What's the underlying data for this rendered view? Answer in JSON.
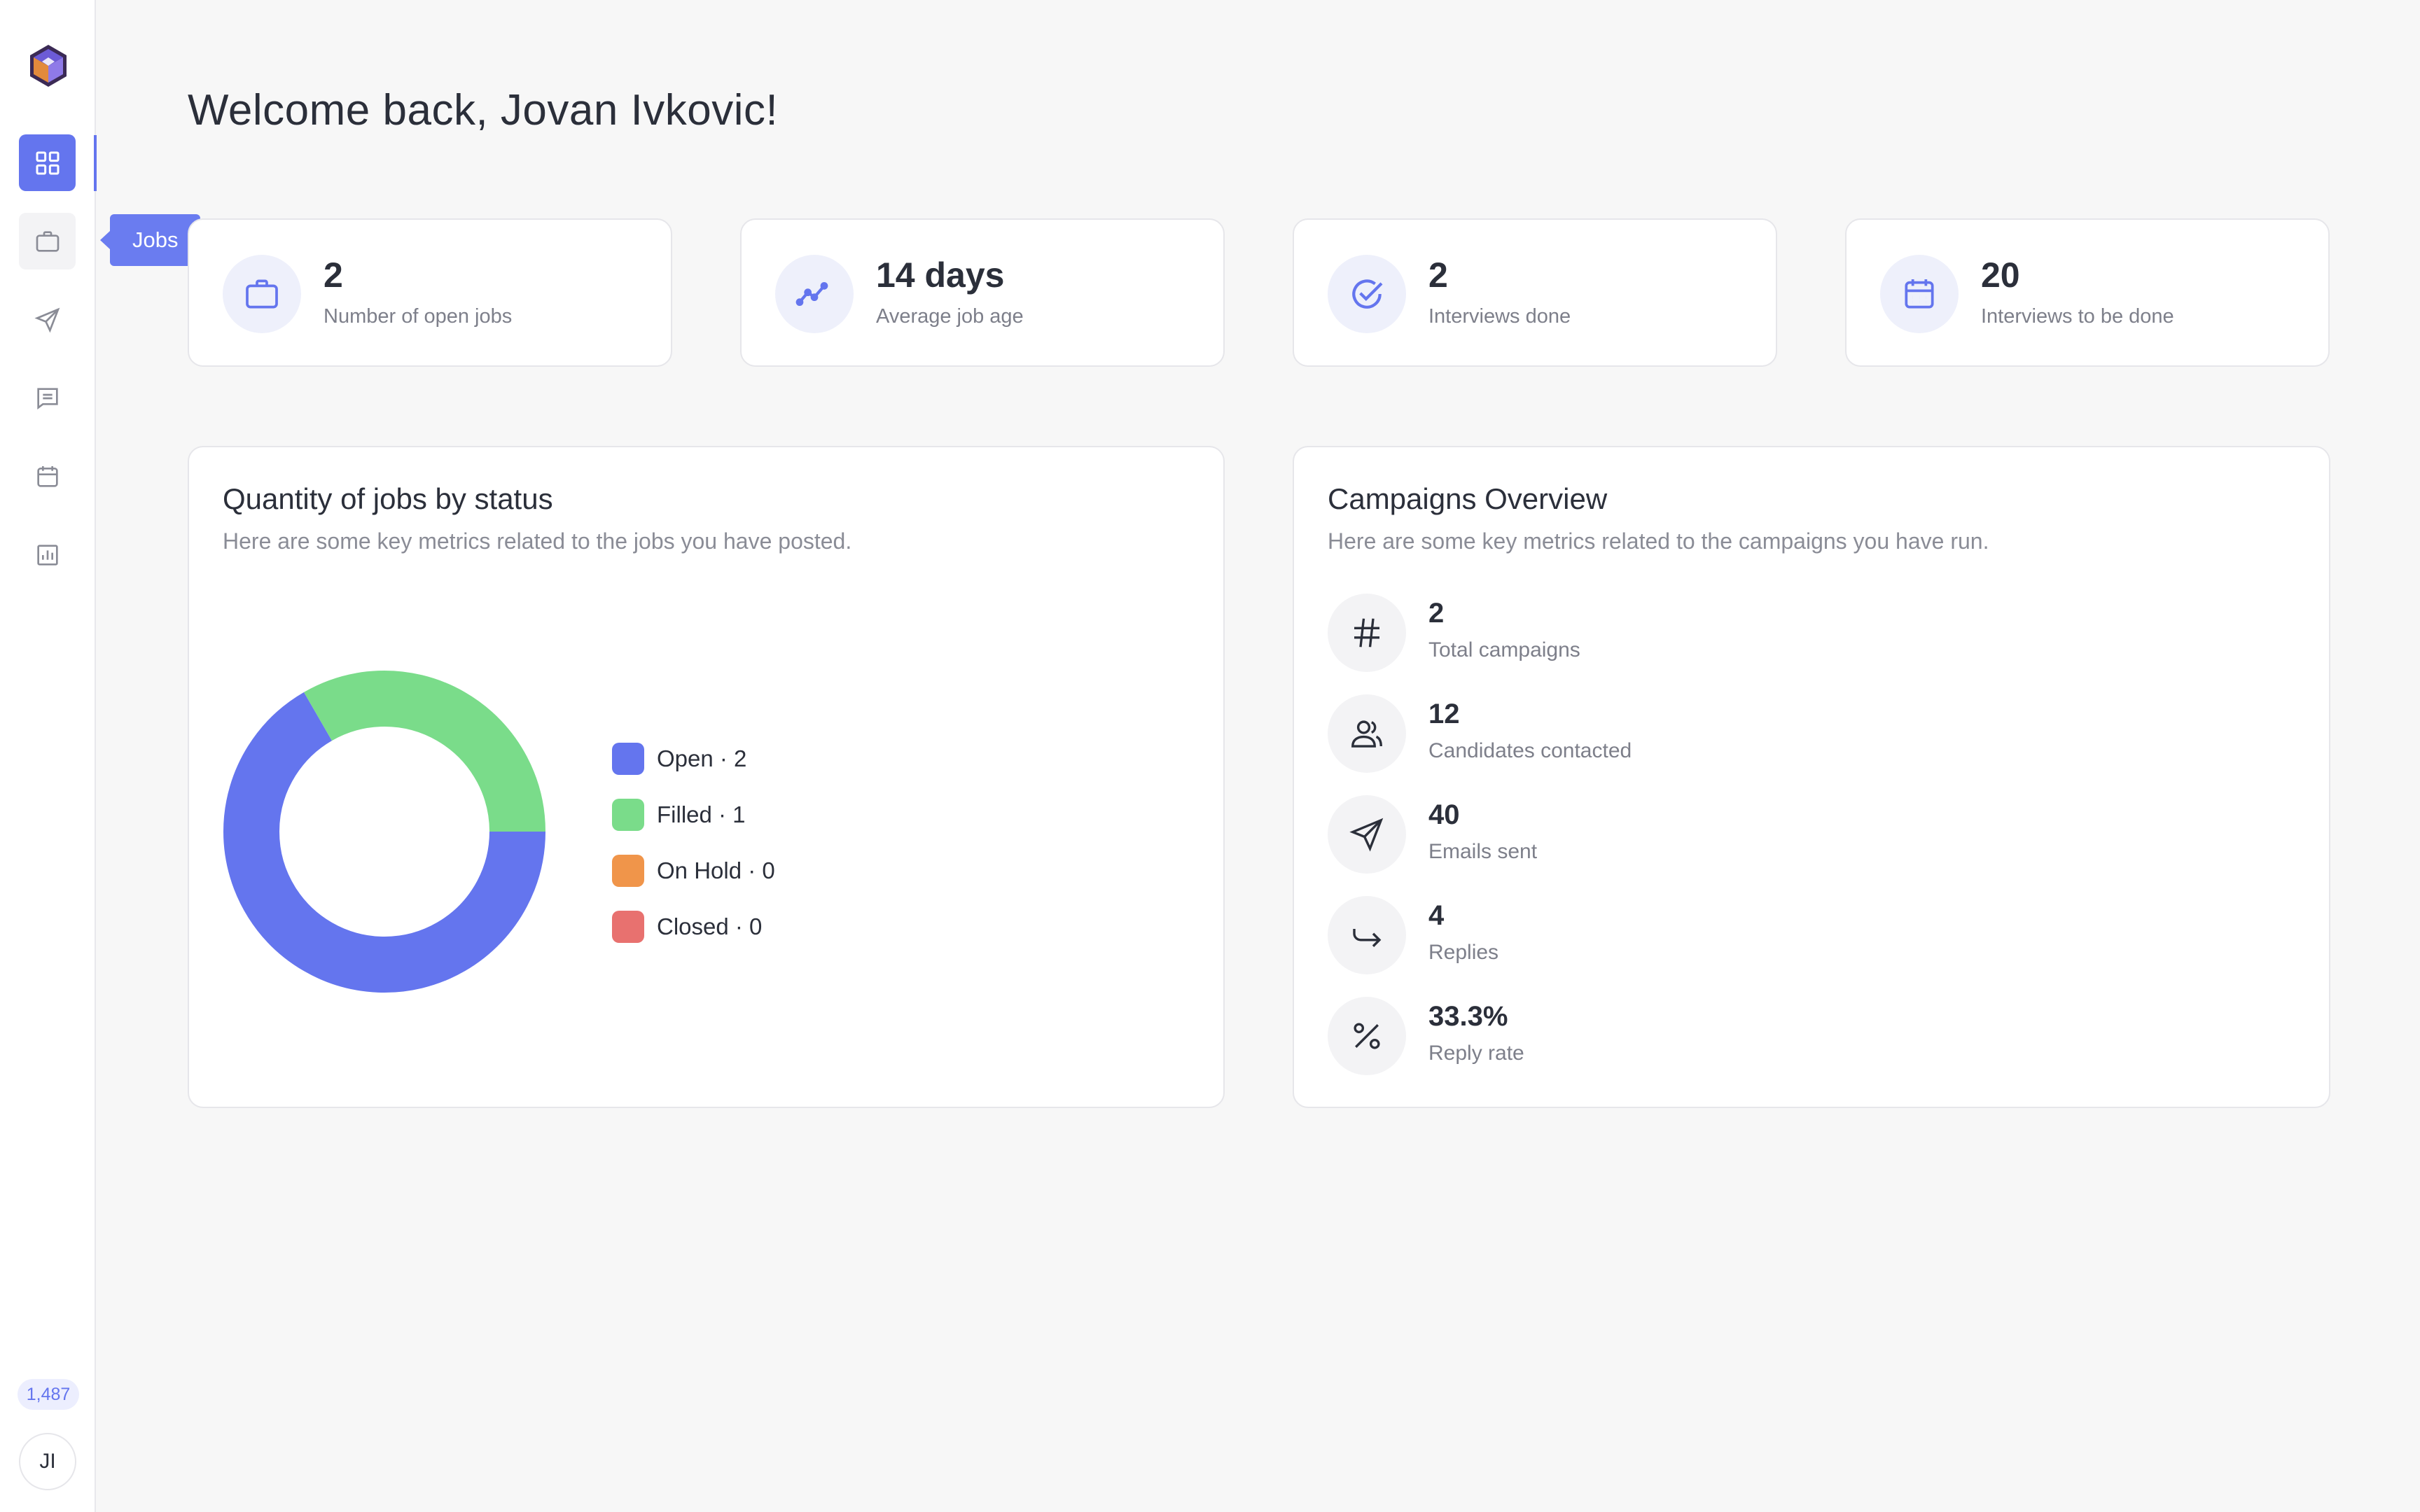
{
  "app": {
    "accent_color": "#6475ee"
  },
  "sidebar": {
    "items": [
      {
        "icon": "grid-icon",
        "active": true
      },
      {
        "icon": "briefcase-icon",
        "tooltip": "Jobs"
      },
      {
        "icon": "send-icon"
      },
      {
        "icon": "message-icon"
      },
      {
        "icon": "calendar-icon"
      },
      {
        "icon": "bar-chart-icon"
      }
    ],
    "credits": "1,487",
    "avatar_initials": "JI"
  },
  "header": {
    "welcome": "Welcome back, Jovan Ivkovic!"
  },
  "stats": [
    {
      "icon": "briefcase-icon",
      "value": "2",
      "label": "Number of open jobs"
    },
    {
      "icon": "trend-line-icon",
      "value": "14 days",
      "label": "Average job age"
    },
    {
      "icon": "check-circle-icon",
      "value": "2",
      "label": "Interviews done"
    },
    {
      "icon": "calendar-icon",
      "value": "20",
      "label": "Interviews to be done"
    }
  ],
  "jobs_panel": {
    "title": "Quantity of jobs by status",
    "subtitle": "Here are some key metrics related to the jobs you have posted."
  },
  "chart_data": {
    "type": "pie",
    "donut": true,
    "categories": [
      "Open",
      "Filled",
      "On Hold",
      "Closed"
    ],
    "values": [
      2,
      1,
      0,
      0
    ],
    "legend_labels": [
      "Open · 2",
      "Filled · 1",
      "On Hold · 0",
      "Closed · 0"
    ],
    "colors": [
      "#6475ee",
      "#7adc8a",
      "#f0954a",
      "#e8716f"
    ],
    "legend": "right"
  },
  "campaigns_panel": {
    "title": "Campaigns Overview",
    "subtitle": "Here are some key metrics related to the campaigns you have run.",
    "metrics": [
      {
        "icon": "hash-icon",
        "value": "2",
        "label": "Total campaigns"
      },
      {
        "icon": "users-icon",
        "value": "12",
        "label": "Candidates contacted"
      },
      {
        "icon": "send-icon",
        "value": "40",
        "label": "Emails sent"
      },
      {
        "icon": "reply-icon",
        "value": "4",
        "label": "Replies"
      },
      {
        "icon": "percent-icon",
        "value": "33.3%",
        "label": "Reply rate"
      }
    ]
  }
}
